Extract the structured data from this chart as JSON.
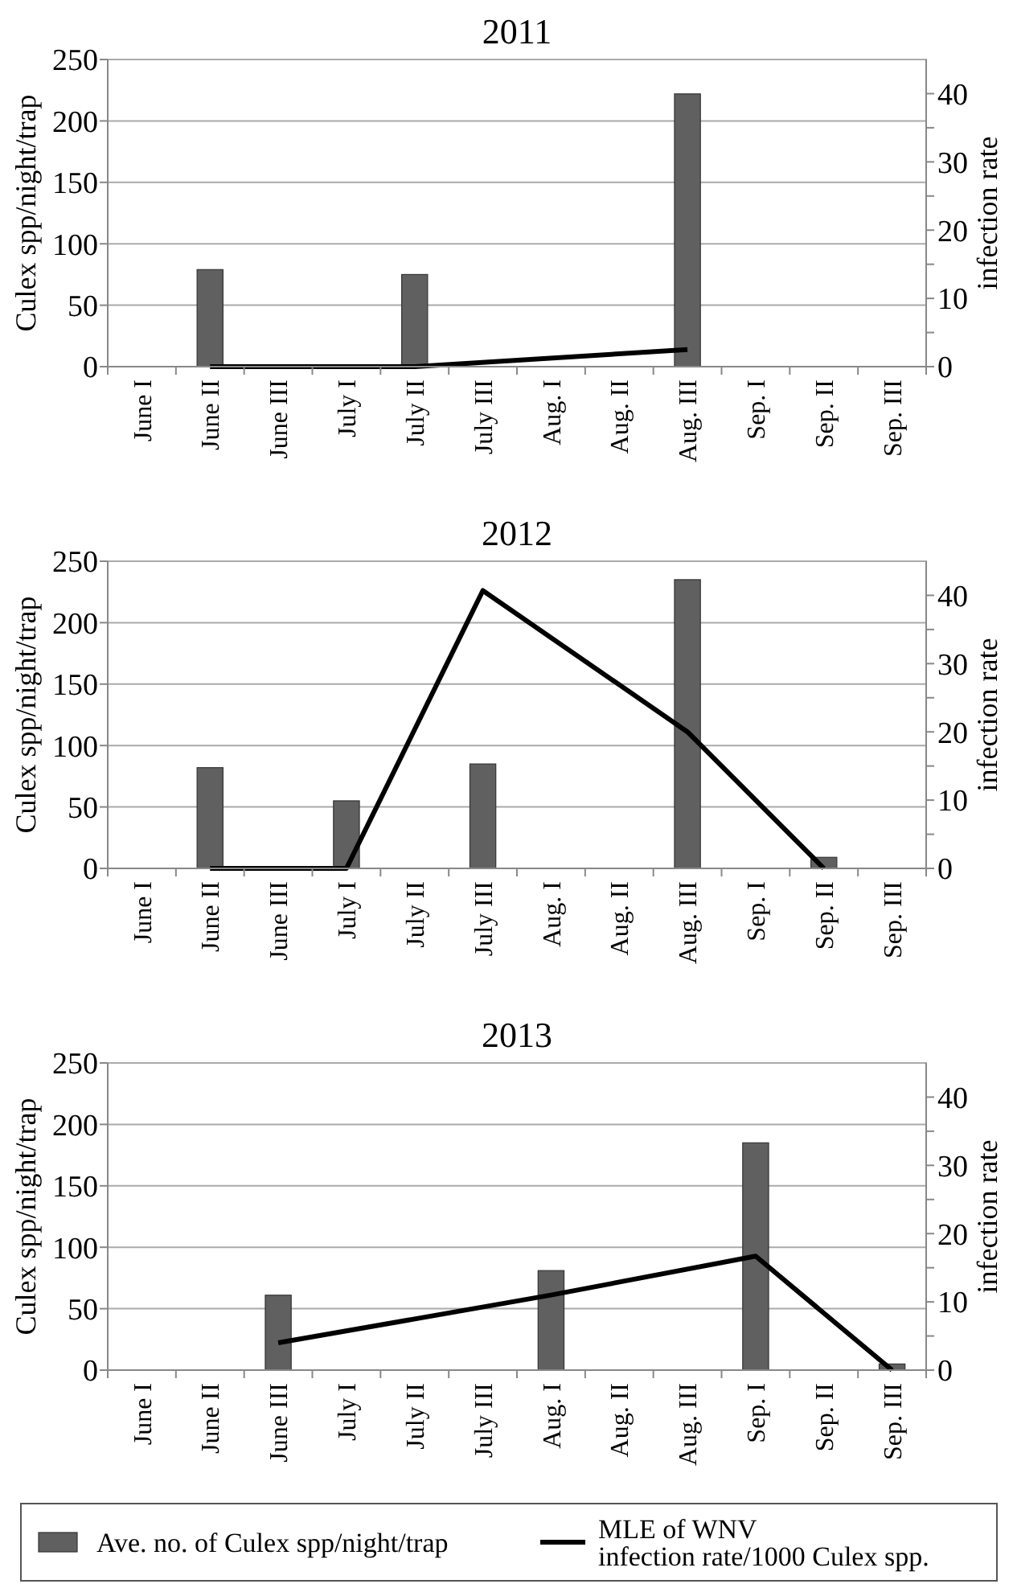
{
  "chart_data": [
    {
      "type": "bar",
      "title": "2011",
      "ylabel": "Culex spp/night/trap",
      "y2label": "infection rate",
      "categories": [
        "June I",
        "June II",
        "June III",
        "July I",
        "July II",
        "July III",
        "Aug. I",
        "Aug. II",
        "Aug. III",
        "Sep. I",
        "Sep. II",
        "Sep. III"
      ],
      "series": [
        {
          "color": "#606060",
          "values": [
            null,
            79,
            null,
            null,
            75,
            null,
            null,
            null,
            222,
            null,
            null,
            null
          ]
        },
        {
          "type": "line",
          "axis": "y2",
          "color": "#000000",
          "values": [
            null,
            0,
            null,
            null,
            0,
            null,
            null,
            null,
            2.5,
            null,
            null,
            null
          ]
        }
      ],
      "ylim": [
        0,
        250
      ],
      "yticks": [
        0,
        50,
        100,
        150,
        200,
        250
      ],
      "y2lim": [
        0,
        45
      ],
      "y2ticks": [
        0,
        {
          "value": 5,
          "label": null
        },
        10,
        {
          "value": 15,
          "label": null
        },
        20,
        {
          "value": 25,
          "label": null
        },
        30,
        {
          "value": 35,
          "label": null
        },
        40
      ],
      "grid": "y",
      "legend": false
    },
    {
      "type": "bar",
      "title": "2012",
      "ylabel": "Culex spp/night/trap",
      "y2label": "infection rate",
      "categories": [
        "June I",
        "June II",
        "June III",
        "July I",
        "July II",
        "July III",
        "Aug. I",
        "Aug. II",
        "Aug. III",
        "Sep. I",
        "Sep. II",
        "Sep. III"
      ],
      "series": [
        {
          "color": "#606060",
          "values": [
            null,
            82,
            null,
            55,
            null,
            85,
            null,
            null,
            235,
            null,
            9,
            null
          ]
        },
        {
          "type": "line",
          "axis": "y2",
          "color": "#000000",
          "values": [
            null,
            0,
            null,
            0,
            null,
            40.7,
            null,
            null,
            20,
            null,
            0,
            null
          ]
        }
      ],
      "ylim": [
        0,
        250
      ],
      "yticks": [
        0,
        50,
        100,
        150,
        200,
        250
      ],
      "y2lim": [
        0,
        45
      ],
      "y2ticks": [
        0,
        {
          "value": 5,
          "label": null
        },
        10,
        {
          "value": 15,
          "label": null
        },
        20,
        {
          "value": 25,
          "label": null
        },
        30,
        {
          "value": 35,
          "label": null
        },
        40
      ],
      "grid": "y",
      "legend": false
    },
    {
      "type": "bar",
      "title": "2013",
      "ylabel": "Culex spp/night/trap",
      "y2label": "infection rate",
      "categories": [
        "June I",
        "June II",
        "June III",
        "July I",
        "July II",
        "July III",
        "Aug. I",
        "Aug. II",
        "Aug. III",
        "Sep. I",
        "Sep. II",
        "Sep. III"
      ],
      "series": [
        {
          "name": "Ave. no. of Culex spp/night/trap",
          "color": "#606060",
          "values": [
            null,
            null,
            61,
            null,
            null,
            null,
            81,
            null,
            null,
            185,
            null,
            5
          ]
        },
        {
          "type": "line",
          "axis": "y2",
          "name": "MLE of WNV\ninfection rate/1000 Culex spp.",
          "color": "#000000",
          "values": [
            null,
            null,
            4,
            null,
            null,
            null,
            11,
            null,
            null,
            16.7,
            null,
            0
          ]
        }
      ],
      "ylim": [
        0,
        250
      ],
      "yticks": [
        0,
        50,
        100,
        150,
        200,
        250
      ],
      "y2lim": [
        0,
        45
      ],
      "y2ticks": [
        0,
        {
          "value": 5,
          "label": null
        },
        10,
        {
          "value": 15,
          "label": null
        },
        20,
        {
          "value": 25,
          "label": null
        },
        30,
        {
          "value": 35,
          "label": null
        },
        40
      ],
      "grid": "y",
      "legend": "bottom"
    }
  ]
}
